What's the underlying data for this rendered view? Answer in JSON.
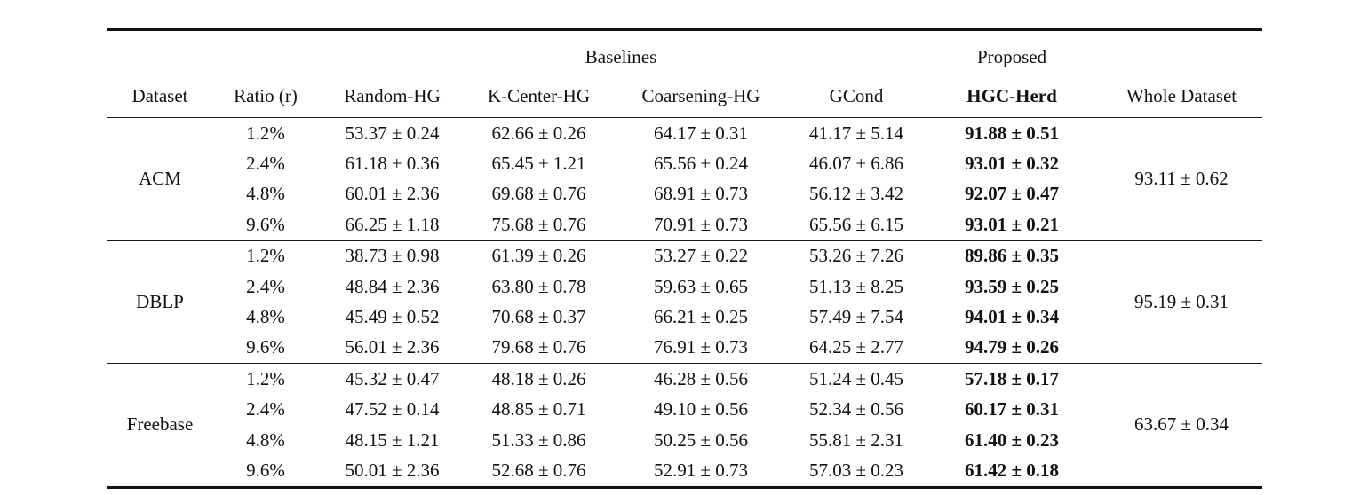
{
  "table": {
    "group_headers": {
      "baselines": "Baselines",
      "proposed": "Proposed"
    },
    "columns": [
      "Dataset",
      "Ratio (r)",
      "Random-HG",
      "K-Center-HG",
      "Coarsening-HG",
      "GCond",
      "HGC-Herd",
      "Whole Dataset"
    ],
    "groups": [
      {
        "dataset": "ACM",
        "whole_dataset": "93.11 ± 0.62",
        "rows": [
          {
            "ratio": "1.2%",
            "values": [
              "53.37 ± 0.24",
              "62.66 ± 0.26",
              "64.17 ± 0.31",
              "41.17 ± 5.14",
              "91.88 ± 0.51"
            ]
          },
          {
            "ratio": "2.4%",
            "values": [
              "61.18 ± 0.36",
              "65.45 ± 1.21",
              "65.56 ± 0.24",
              "46.07 ± 6.86",
              "93.01 ± 0.32"
            ]
          },
          {
            "ratio": "4.8%",
            "values": [
              "60.01 ± 2.36",
              "69.68 ± 0.76",
              "68.91 ± 0.73",
              "56.12 ± 3.42",
              "92.07 ± 0.47"
            ]
          },
          {
            "ratio": "9.6%",
            "values": [
              "66.25 ± 1.18",
              "75.68 ± 0.76",
              "70.91 ± 0.73",
              "65.56 ± 6.15",
              "93.01 ± 0.21"
            ]
          }
        ]
      },
      {
        "dataset": "DBLP",
        "whole_dataset": "95.19 ± 0.31",
        "rows": [
          {
            "ratio": "1.2%",
            "values": [
              "38.73 ± 0.98",
              "61.39 ± 0.26",
              "53.27 ± 0.22",
              "53.26 ± 7.26",
              "89.86 ± 0.35"
            ]
          },
          {
            "ratio": "2.4%",
            "values": [
              "48.84 ± 2.36",
              "63.80 ± 0.78",
              "59.63 ± 0.65",
              "51.13 ± 8.25",
              "93.59 ± 0.25"
            ]
          },
          {
            "ratio": "4.8%",
            "values": [
              "45.49 ± 0.52",
              "70.68 ± 0.37",
              "66.21 ± 0.25",
              "57.49 ± 7.54",
              "94.01 ± 0.34"
            ]
          },
          {
            "ratio": "9.6%",
            "values": [
              "56.01 ± 2.36",
              "79.68 ± 0.76",
              "76.91 ± 0.73",
              "64.25 ± 2.77",
              "94.79 ± 0.26"
            ]
          }
        ]
      },
      {
        "dataset": "Freebase",
        "whole_dataset": "63.67 ± 0.34",
        "rows": [
          {
            "ratio": "1.2%",
            "values": [
              "45.32 ± 0.47",
              "48.18 ± 0.26",
              "46.28 ± 0.56",
              "51.24 ± 0.45",
              "57.18 ± 0.17"
            ]
          },
          {
            "ratio": "2.4%",
            "values": [
              "47.52 ± 0.14",
              "48.85 ± 0.71",
              "49.10 ± 0.56",
              "52.34 ± 0.56",
              "60.17 ± 0.31"
            ]
          },
          {
            "ratio": "4.8%",
            "values": [
              "48.15 ± 1.21",
              "51.33 ± 0.86",
              "50.25 ± 0.56",
              "55.81 ± 2.31",
              "61.40 ± 0.23"
            ]
          },
          {
            "ratio": "9.6%",
            "values": [
              "50.01 ± 2.36",
              "52.68 ± 0.76",
              "52.91 ± 0.73",
              "57.03 ± 0.23",
              "61.42 ± 0.18"
            ]
          }
        ]
      }
    ]
  }
}
